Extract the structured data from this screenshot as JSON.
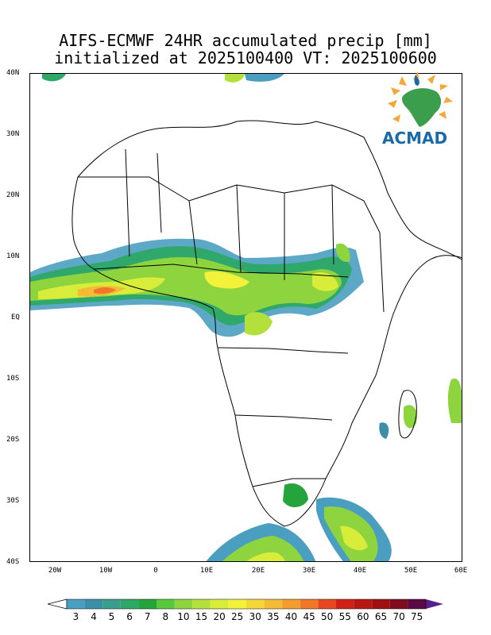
{
  "title_line1": "AIFS-ECMWF 24HR accumulated precip [mm]",
  "title_line2": "initialized at 2025100400 VT: 2025100600",
  "logo_text": "ACMAD",
  "y_ticks": [
    "40N",
    "30N",
    "20N",
    "10N",
    "EQ",
    "10S",
    "20S",
    "30S",
    "40S"
  ],
  "x_ticks": [
    "20W",
    "10W",
    "0",
    "10E",
    "20E",
    "30E",
    "40E",
    "50E",
    "60E"
  ],
  "colorbar": {
    "labels": [
      "3",
      "4",
      "5",
      "6",
      "7",
      "8",
      "10",
      "15",
      "20",
      "25",
      "30",
      "35",
      "40",
      "45",
      "50",
      "55",
      "60",
      "65",
      "70",
      "75"
    ],
    "colors": [
      "#4a9fc0",
      "#3d8fa8",
      "#3a9e8c",
      "#2ea866",
      "#26a43c",
      "#58c83c",
      "#8ed43e",
      "#b4e03c",
      "#d8ec3a",
      "#f2f23a",
      "#f4d83a",
      "#f4bc36",
      "#f49c30",
      "#f07828",
      "#e84820",
      "#d02018",
      "#b81814",
      "#a01010",
      "#7e0c1c",
      "#5a0a44"
    ],
    "under_color": "#ffffff",
    "over_color": "#5a1e8c"
  }
}
